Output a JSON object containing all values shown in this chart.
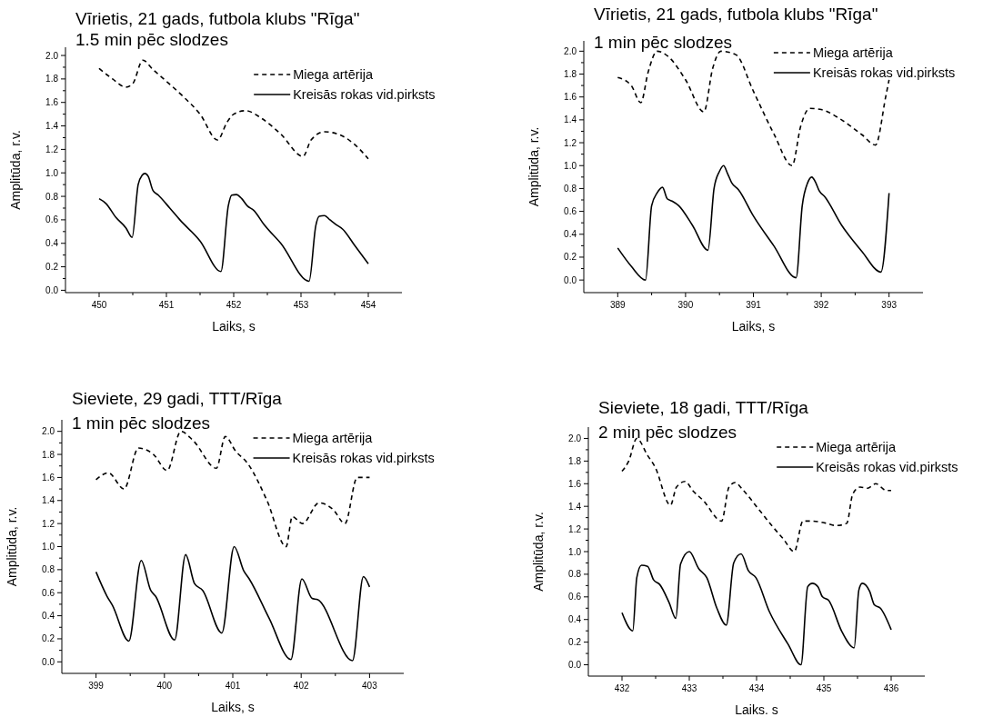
{
  "chart_data": [
    {
      "type": "line",
      "title": "Vīrietis, 21 gads, futbola klubs \"Rīga\"",
      "subtitle": "1.5 min pēc slodzes",
      "xlabel": "Laiks, s",
      "ylabel": "Amplitūda, r.v.",
      "legend": "top right",
      "xlim": [
        449.5,
        454.5
      ],
      "ylim": [
        -0.02,
        2.07
      ],
      "xticks": [
        450,
        {
          "value": 450.5,
          "label": null
        },
        451,
        {
          "value": 451.5,
          "label": null
        },
        452,
        {
          "value": 452.5,
          "label": null
        },
        453,
        {
          "value": 453.5,
          "label": null
        },
        454
      ],
      "yticks": [
        {
          "value": 0,
          "label": "0.0"
        },
        0.2,
        0.4,
        0.6,
        0.8,
        {
          "value": 1,
          "label": "1.0"
        },
        1.2,
        1.4,
        1.6,
        1.8,
        {
          "value": 2,
          "label": "2.0"
        }
      ],
      "series": [
        {
          "name": "Miega artērija",
          "color": "#000000",
          "line_style": "dashed",
          "x": [
            450,
            450.2,
            450.4,
            450.5,
            450.65,
            450.8,
            451,
            451.25,
            451.5,
            451.76,
            451.9,
            452,
            452.18,
            452.4,
            452.7,
            453.03,
            453.15,
            453.35,
            453.55,
            453.8,
            454
          ],
          "values": [
            1.89,
            1.8,
            1.73,
            1.76,
            1.96,
            1.88,
            1.78,
            1.65,
            1.5,
            1.28,
            1.43,
            1.5,
            1.53,
            1.47,
            1.33,
            1.14,
            1.28,
            1.35,
            1.33,
            1.24,
            1.12
          ]
        },
        {
          "name": "Kreisās rokas vid.pirksts",
          "color": "#000000",
          "line_style": "solid",
          "x": [
            450,
            450.1,
            450.25,
            450.4,
            450.49,
            450.58,
            450.64,
            450.68,
            450.73,
            450.8,
            450.88,
            451.05,
            451.2,
            451.5,
            451.81,
            451.92,
            451.97,
            452.04,
            452.12,
            452.2,
            452.3,
            452.45,
            452.7,
            453.12,
            453.22,
            453.27,
            453.35,
            453.43,
            453.52,
            453.62,
            453.8,
            454
          ],
          "values": [
            0.78,
            0.74,
            0.62,
            0.53,
            0.45,
            0.9,
            0.98,
            0.995,
            0.97,
            0.85,
            0.81,
            0.7,
            0.6,
            0.42,
            0.16,
            0.72,
            0.81,
            0.815,
            0.78,
            0.72,
            0.68,
            0.56,
            0.4,
            0.077,
            0.55,
            0.63,
            0.636,
            0.6,
            0.56,
            0.52,
            0.38,
            0.226
          ]
        }
      ]
    },
    {
      "type": "line",
      "title": "Vīrietis, 21 gads, futbola klubs \"Rīga\"",
      "subtitle": "1 min pēc slodzes",
      "xlabel": "Laiks, s",
      "ylabel": "Amplitūda, r.v.",
      "legend": "top right",
      "xlim": [
        388.5,
        393.5
      ],
      "ylim": [
        -0.11,
        2.09
      ],
      "xticks": [
        389,
        {
          "value": 389.5,
          "label": null
        },
        390,
        {
          "value": 390.5,
          "label": null
        },
        391,
        {
          "value": 391.5,
          "label": null
        },
        392,
        {
          "value": 392.5,
          "label": null
        },
        393
      ],
      "yticks": [
        {
          "value": 0,
          "label": "0.0"
        },
        0.2,
        0.4,
        0.6,
        0.8,
        {
          "value": 1,
          "label": "1.0"
        },
        1.2,
        1.4,
        1.6,
        1.8,
        {
          "value": 2,
          "label": "2.0"
        }
      ],
      "series": [
        {
          "name": "Miega artērija",
          "color": "#000000",
          "line_style": "dashed",
          "x": [
            389,
            389.2,
            389.34,
            389.45,
            389.58,
            389.75,
            390,
            390.27,
            390.4,
            390.52,
            390.74,
            391,
            391.3,
            391.57,
            391.7,
            391.83,
            392,
            392.3,
            392.6,
            392.8,
            392.95,
            393
          ],
          "values": [
            1.77,
            1.7,
            1.55,
            1.82,
            2.0,
            1.95,
            1.75,
            1.47,
            1.85,
            2.0,
            1.97,
            1.65,
            1.28,
            1.0,
            1.35,
            1.5,
            1.49,
            1.4,
            1.27,
            1.18,
            1.6,
            1.75
          ]
        },
        {
          "name": "Kreisās rokas vid.pirksts",
          "color": "#000000",
          "line_style": "solid",
          "x": [
            389,
            389.2,
            389.41,
            389.5,
            389.58,
            389.66,
            389.73,
            389.8,
            389.9,
            390.1,
            390.33,
            390.42,
            390.5,
            390.56,
            390.62,
            390.68,
            390.78,
            391,
            391.3,
            391.63,
            391.72,
            391.8,
            391.86,
            391.92,
            391.97,
            392.05,
            392.3,
            392.6,
            392.88,
            393
          ],
          "values": [
            0.28,
            0.12,
            0.0,
            0.65,
            0.76,
            0.81,
            0.71,
            0.69,
            0.65,
            0.48,
            0.26,
            0.8,
            0.95,
            1.0,
            0.93,
            0.85,
            0.79,
            0.56,
            0.3,
            0.02,
            0.65,
            0.85,
            0.9,
            0.85,
            0.78,
            0.73,
            0.48,
            0.25,
            0.07,
            0.76
          ]
        }
      ]
    },
    {
      "type": "line",
      "title": "Sieviete, 29 gadi, TTT/Rīga",
      "subtitle": "1 min pēc slodzes",
      "xlabel": "Laiks, s",
      "ylabel": "Amplitūda, r.v.",
      "legend": "top right",
      "xlim": [
        398.5,
        403.5
      ],
      "ylim": [
        -0.1,
        2.1
      ],
      "xticks": [
        399,
        {
          "value": 399.5,
          "label": null
        },
        400,
        {
          "value": 400.5,
          "label": null
        },
        401,
        {
          "value": 401.5,
          "label": null
        },
        402,
        {
          "value": 402.5,
          "label": null
        },
        403
      ],
      "yticks": [
        {
          "value": 0,
          "label": "0.0"
        },
        0.2,
        0.4,
        0.6,
        0.8,
        {
          "value": 1,
          "label": "1.0"
        },
        1.2,
        1.4,
        1.6,
        1.8,
        {
          "value": 2,
          "label": "2.0"
        }
      ],
      "series": [
        {
          "name": "Miega artērija",
          "color": "#000000",
          "line_style": "dashed",
          "x": [
            399,
            399.18,
            399.41,
            399.62,
            399.84,
            400.04,
            400.24,
            400.42,
            400.76,
            400.89,
            401.04,
            401.22,
            401.5,
            401.78,
            401.87,
            402.02,
            402.26,
            402.47,
            402.64,
            402.82,
            403
          ],
          "values": [
            1.58,
            1.64,
            1.5,
            1.855,
            1.8,
            1.66,
            2.0,
            1.92,
            1.68,
            1.955,
            1.83,
            1.72,
            1.4,
            1.0,
            1.26,
            1.2,
            1.38,
            1.32,
            1.2,
            1.6,
            1.6
          ]
        },
        {
          "name": "Kreisās rokas vid.pirksts",
          "color": "#000000",
          "line_style": "solid",
          "x": [
            399,
            399.16,
            399.24,
            399.48,
            399.66,
            399.8,
            399.87,
            400.15,
            400.31,
            400.44,
            400.56,
            400.84,
            401.02,
            401.16,
            401.24,
            401.53,
            401.85,
            402.01,
            402.16,
            402.24,
            402.75,
            402.91,
            403
          ],
          "values": [
            0.78,
            0.57,
            0.49,
            0.18,
            0.88,
            0.62,
            0.57,
            0.19,
            0.93,
            0.68,
            0.62,
            0.25,
            1.0,
            0.79,
            0.72,
            0.38,
            0.02,
            0.72,
            0.55,
            0.54,
            0.01,
            0.74,
            0.65
          ]
        }
      ]
    },
    {
      "type": "line",
      "title": "Sieviete, 18 gadi, TTT/Rīga",
      "subtitle": "2 min pēc slodzes",
      "xlabel": "Laiks. s",
      "ylabel": "Amplitūda, r.v.",
      "legend": "top right",
      "xlim": [
        431.5,
        436.5
      ],
      "ylim": [
        -0.1,
        2.1
      ],
      "xticks": [
        432,
        {
          "value": 432.5,
          "label": null
        },
        433,
        {
          "value": 433.5,
          "label": null
        },
        434,
        {
          "value": 434.5,
          "label": null
        },
        435,
        {
          "value": 435.5,
          "label": null
        },
        436
      ],
      "yticks": [
        {
          "value": 0,
          "label": "0.0"
        },
        0.2,
        0.4,
        0.6,
        0.8,
        {
          "value": 1,
          "label": "1.0"
        },
        1.2,
        1.4,
        1.6,
        1.8,
        {
          "value": 2,
          "label": "2.0"
        }
      ],
      "series": [
        {
          "name": "Miega artērija",
          "color": "#000000",
          "line_style": "dashed",
          "x": [
            432,
            432.1,
            432.22,
            432.38,
            432.49,
            432.72,
            432.81,
            432.94,
            433.05,
            433.21,
            433.48,
            433.59,
            433.68,
            433.79,
            434.01,
            434.24,
            434.4,
            434.56,
            434.69,
            434.8,
            435.04,
            435.18,
            435.34,
            435.43,
            435.54,
            435.65,
            435.77,
            435.93,
            436
          ],
          "values": [
            1.71,
            1.8,
            2.0,
            1.85,
            1.75,
            1.41,
            1.57,
            1.62,
            1.54,
            1.45,
            1.27,
            1.57,
            1.61,
            1.55,
            1.39,
            1.22,
            1.11,
            1.0,
            1.27,
            1.27,
            1.25,
            1.23,
            1.25,
            1.51,
            1.57,
            1.56,
            1.6,
            1.54,
            1.54
          ]
        },
        {
          "name": "Kreisās rokas vid.pirksts",
          "color": "#000000",
          "line_style": "solid",
          "x": [
            432,
            432.16,
            432.22,
            432.29,
            432.38,
            432.47,
            432.56,
            432.7,
            432.8,
            432.87,
            433,
            433.14,
            433.26,
            433.41,
            433.55,
            433.66,
            433.77,
            433.88,
            433.99,
            434.19,
            434.47,
            434.66,
            434.76,
            434.83,
            434.91,
            434.98,
            435.07,
            435.27,
            435.45,
            435.52,
            435.57,
            435.68,
            435.75,
            435.84,
            436
          ],
          "values": [
            0.46,
            0.3,
            0.77,
            0.88,
            0.87,
            0.75,
            0.71,
            0.55,
            0.41,
            0.89,
            1.0,
            0.85,
            0.77,
            0.5,
            0.35,
            0.9,
            0.98,
            0.83,
            0.77,
            0.47,
            0.18,
            0.0,
            0.69,
            0.72,
            0.69,
            0.6,
            0.57,
            0.29,
            0.15,
            0.66,
            0.72,
            0.65,
            0.53,
            0.5,
            0.31
          ]
        }
      ]
    }
  ]
}
